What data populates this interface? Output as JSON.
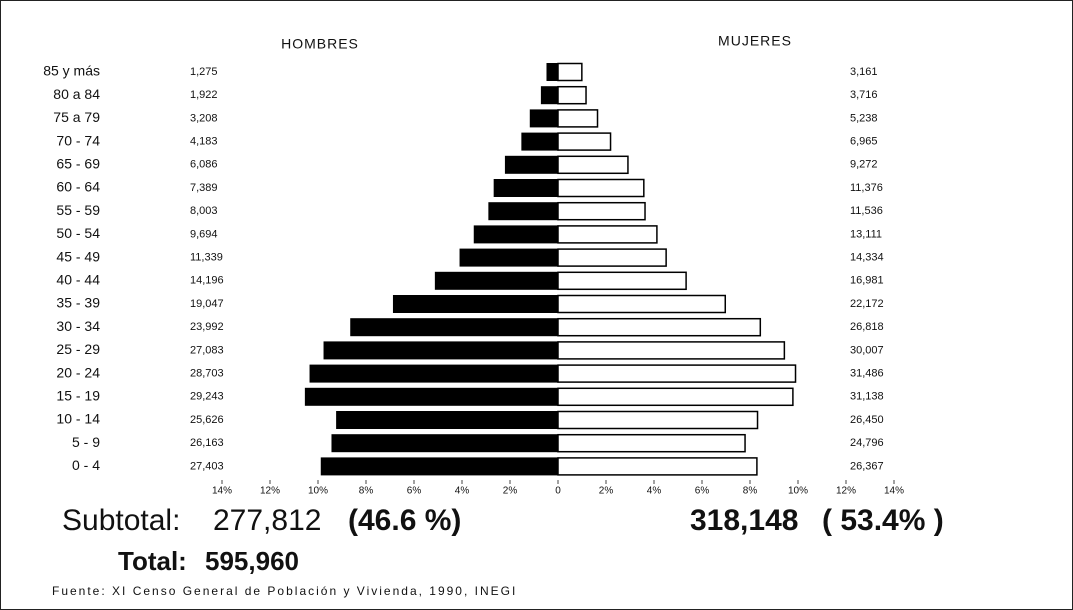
{
  "chart_data": {
    "type": "pyramid",
    "left_title": "HOMBRES",
    "right_title": "MUJERES",
    "categories": [
      "85 y más",
      "80 a 84",
      "75 a 79",
      "70 - 74",
      "65 - 69",
      "60 - 64",
      "55 - 59",
      "50 - 54",
      "45 - 49",
      "40 - 44",
      "35 - 39",
      "30 - 34",
      "25 - 29",
      "20 - 24",
      "15 - 19",
      "10 - 14",
      "5 - 9",
      "0 - 4"
    ],
    "series": [
      {
        "name": "HOMBRES",
        "color": "#000000",
        "values": [
          1275,
          1922,
          3208,
          4183,
          6086,
          7389,
          8003,
          9694,
          11339,
          14196,
          19047,
          23992,
          27083,
          28703,
          29243,
          25626,
          26163,
          27403
        ],
        "value_labels": [
          "1,275",
          "1,922",
          "3,208",
          "4,183",
          "6,086",
          "7,389",
          "8,003",
          "9,694",
          "11,339",
          "14,196",
          "19,047",
          "23,992",
          "27,083",
          "28,703",
          "29,243",
          "25,626",
          "26,163",
          "27,403"
        ]
      },
      {
        "name": "MUJERES",
        "color": "#ffffff",
        "values": [
          3161,
          3716,
          5238,
          6965,
          9272,
          11376,
          11536,
          13111,
          14334,
          16981,
          22172,
          26818,
          30007,
          31486,
          31138,
          26450,
          24796,
          26367
        ],
        "value_labels": [
          "3,161",
          "3,716",
          "5,238",
          "6,965",
          "9,272",
          "11,376",
          "11,536",
          "13,111",
          "14,334",
          "16,981",
          "22,172",
          "26,818",
          "30,007",
          "31,486",
          "31,138",
          "26,450",
          "24,796",
          "26,367"
        ]
      }
    ],
    "xlim": [
      -14,
      14
    ],
    "xticks": [
      {
        "value": -14,
        "label": "14%"
      },
      {
        "value": -12,
        "label": "12%"
      },
      {
        "value": -10,
        "label": "10%"
      },
      {
        "value": -8,
        "label": "8%"
      },
      {
        "value": -6,
        "label": "6%"
      },
      {
        "value": -4,
        "label": "4%"
      },
      {
        "value": -2,
        "label": "2%"
      },
      0,
      {
        "value": 2,
        "label": "2%"
      },
      {
        "value": 4,
        "label": "4%"
      },
      {
        "value": 6,
        "label": "6%"
      },
      {
        "value": 8,
        "label": "8%"
      },
      {
        "value": 10,
        "label": "10%"
      },
      {
        "value": 12,
        "label": "12%"
      },
      {
        "value": 14,
        "label": "14%"
      }
    ],
    "subtotal_label": "Subtotal:",
    "subtotals": [
      {
        "value": 277812,
        "label": "277,812",
        "share": "(46.6 %)"
      },
      {
        "value": 318148,
        "label": "318,148",
        "share": "( 53.4% )"
      }
    ],
    "total_label": "Total:",
    "total": {
      "value": 595960,
      "label": "595,960"
    },
    "source": "Fuente: XI Censo General de Población y Vivienda, 1990, INEGI"
  }
}
